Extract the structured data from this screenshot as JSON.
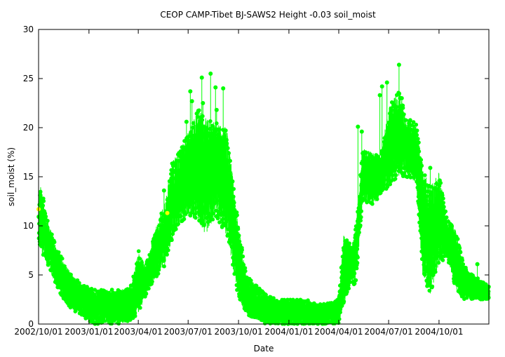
{
  "chart_data": {
    "type": "scatter",
    "title": "CEOP CAMP-Tibet BJ-SAWS2 Height -0.03 soil_moist",
    "xlabel": "Date",
    "ylabel": "soil_moist (%)",
    "xlim": [
      "2002-10-01",
      "2004-12-31"
    ],
    "ylim": [
      0,
      30
    ],
    "grid": false,
    "legend": "none",
    "x_tick_labels": [
      "2002/10/01",
      "2003/01/01",
      "2003/04/01",
      "2003/07/01",
      "2003/10/01",
      "2004/01/01",
      "2004/04/01",
      "2004/07/01",
      "2004/10/01"
    ],
    "x_ticks": [
      "2002-10-01",
      "2003-01-01",
      "2003-04-01",
      "2003-07-01",
      "2003-10-01",
      "2004-01-01",
      "2004-04-01",
      "2004-07-01",
      "2004-10-01"
    ],
    "y_ticks": [
      0,
      5,
      10,
      15,
      20,
      25,
      30
    ],
    "y_tick_labels": [
      "0",
      "5",
      "10",
      "15",
      "20",
      "25",
      "30"
    ],
    "colors": {
      "series": "#00ff00",
      "flagged": "#ffff00",
      "axis": "#000000"
    },
    "series": [
      {
        "color": "#00ff00",
        "envelope": {
          "x": [
            "2002-10-01",
            "2002-10-05",
            "2002-10-15",
            "2002-11-01",
            "2002-11-15",
            "2002-12-01",
            "2002-12-20",
            "2003-01-10",
            "2003-02-01",
            "2003-03-01",
            "2003-03-20",
            "2003-04-01",
            "2003-04-15",
            "2003-05-01",
            "2003-05-20",
            "2003-06-01",
            "2003-06-15",
            "2003-07-01",
            "2003-07-20",
            "2003-08-01",
            "2003-08-20",
            "2003-09-10",
            "2003-10-01",
            "2003-10-15",
            "2003-11-01",
            "2003-11-20",
            "2003-12-10",
            "2004-01-01",
            "2004-02-01",
            "2004-03-01",
            "2004-04-01",
            "2004-04-10",
            "2004-04-25",
            "2004-05-01",
            "2004-05-15",
            "2004-06-01",
            "2004-06-15",
            "2004-07-01",
            "2004-07-20",
            "2004-08-01",
            "2004-08-20",
            "2004-09-01",
            "2004-09-15",
            "2004-10-01",
            "2004-10-15",
            "2004-11-01",
            "2004-11-15",
            "2004-12-01",
            "2004-12-31"
          ],
          "low": [
            8.5,
            7.5,
            6.5,
            4.0,
            2.5,
            1.5,
            0.8,
            0.0,
            0.0,
            0.0,
            0.3,
            1.0,
            3.0,
            4.5,
            6.0,
            8.5,
            10.0,
            11.0,
            10.5,
            9.0,
            11.0,
            9.0,
            2.5,
            1.0,
            0.5,
            0.0,
            0.0,
            0.0,
            0.0,
            0.0,
            0.0,
            2.0,
            4.5,
            3.5,
            12.5,
            12.0,
            13.0,
            14.0,
            15.0,
            15.0,
            14.5,
            5.0,
            3.0,
            6.0,
            7.0,
            3.5,
            2.5,
            2.5,
            2.5
          ],
          "high": [
            13.0,
            14.5,
            11.0,
            8.0,
            6.5,
            5.0,
            4.0,
            3.5,
            3.5,
            3.5,
            4.0,
            7.5,
            6.0,
            9.5,
            12.5,
            16.5,
            17.5,
            19.5,
            22.0,
            21.0,
            20.5,
            20.0,
            10.0,
            5.0,
            4.0,
            3.0,
            2.5,
            2.5,
            2.5,
            2.0,
            2.5,
            9.0,
            8.0,
            9.5,
            18.0,
            17.5,
            17.0,
            22.0,
            24.0,
            21.0,
            20.5,
            16.0,
            14.0,
            15.5,
            11.0,
            9.5,
            6.0,
            5.0,
            4.0
          ]
        },
        "spikes": [
          {
            "x": "2003-05-18",
            "y": 13.6
          },
          {
            "x": "2003-06-20",
            "y": 18.0
          },
          {
            "x": "2003-06-28",
            "y": 20.6
          },
          {
            "x": "2003-07-05",
            "y": 23.7
          },
          {
            "x": "2003-07-08",
            "y": 22.7
          },
          {
            "x": "2003-07-26",
            "y": 25.1
          },
          {
            "x": "2003-07-28",
            "y": 22.5
          },
          {
            "x": "2003-08-11",
            "y": 25.5
          },
          {
            "x": "2003-08-20",
            "y": 24.1
          },
          {
            "x": "2003-08-22",
            "y": 21.8
          },
          {
            "x": "2003-09-03",
            "y": 24.0
          },
          {
            "x": "2004-05-06",
            "y": 20.1
          },
          {
            "x": "2004-05-13",
            "y": 19.6
          },
          {
            "x": "2004-06-15",
            "y": 23.3
          },
          {
            "x": "2004-06-19",
            "y": 24.2
          },
          {
            "x": "2004-06-28",
            "y": 24.6
          },
          {
            "x": "2004-07-10",
            "y": 22.3
          },
          {
            "x": "2004-07-20",
            "y": 26.4
          },
          {
            "x": "2004-07-25",
            "y": 23.0
          },
          {
            "x": "2004-08-28",
            "y": 15.9
          },
          {
            "x": "2004-09-15",
            "y": 15.9
          },
          {
            "x": "2004-10-08",
            "y": 11.3
          },
          {
            "x": "2004-12-10",
            "y": 6.1
          }
        ]
      },
      {
        "color": "#ffff00",
        "points": [
          {
            "x": "2002-10-01",
            "y": 11.7
          },
          {
            "x": "2003-05-24",
            "y": 11.3
          }
        ]
      }
    ]
  }
}
